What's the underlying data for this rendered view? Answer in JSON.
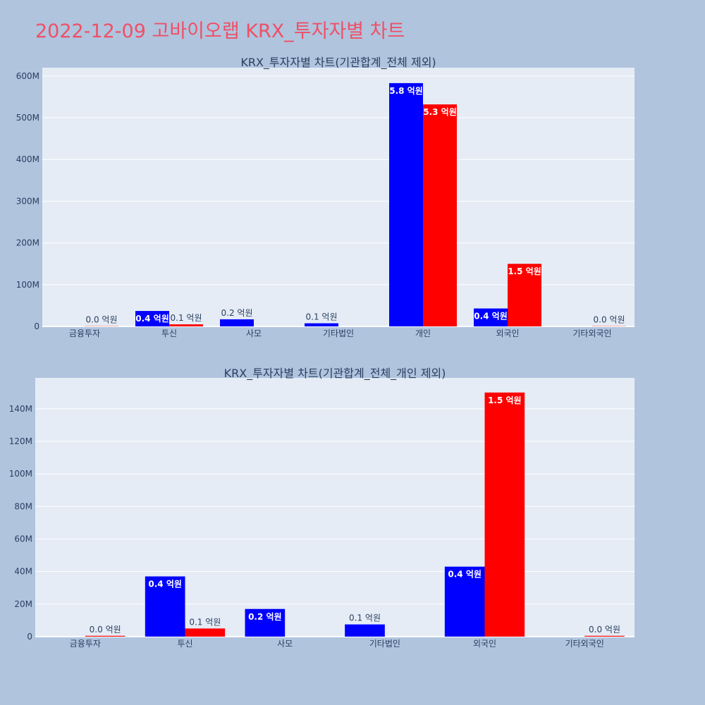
{
  "page": {
    "title": "2022-12-09 고바이오랩 KRX_투자자별 차트"
  },
  "colors": {
    "background": "#b0c4de",
    "plot_bg": "#e5ecf6",
    "title": "#ef5066",
    "buy": "#0000ff",
    "sell": "#ff0000"
  },
  "chart_data": [
    {
      "type": "bar",
      "title": "KRX_투자자별 차트(기관합계_전체 제외)",
      "categories": [
        "금융투자",
        "투신",
        "사모",
        "기타법인",
        "개인",
        "외국인",
        "기타외국인"
      ],
      "ylim": [
        0,
        620000000
      ],
      "yticks": [
        0,
        100000000,
        200000000,
        300000000,
        400000000,
        500000000,
        600000000
      ],
      "ytick_labels": [
        "0",
        "100M",
        "200M",
        "300M",
        "400M",
        "500M",
        "600M"
      ],
      "grid": true,
      "legend": "none",
      "series": [
        {
          "color": "#0000ff",
          "values": [
            0,
            37000000,
            17000000,
            7500000,
            583000000,
            43000000,
            0
          ],
          "labels": [
            "",
            "0.4 억원",
            "0.2 억원",
            "0.1 억원",
            "5.8 억원",
            "0.4 억원",
            ""
          ]
        },
        {
          "color": "#ff0000",
          "values": [
            500000,
            5000000,
            0,
            0,
            532000000,
            150000000,
            500000
          ],
          "labels": [
            "0.0 억원",
            "0.1 억원",
            "",
            "",
            "5.3 억원",
            "1.5 억원",
            "0.0 억원"
          ]
        }
      ]
    },
    {
      "type": "bar",
      "title": "KRX_투자자별 차트(기관합계_전체_개인 제외)",
      "categories": [
        "금융투자",
        "투신",
        "사모",
        "기타법인",
        "외국인",
        "기타외국인"
      ],
      "ylim": [
        0,
        159000000
      ],
      "yticks": [
        0,
        20000000,
        40000000,
        60000000,
        80000000,
        100000000,
        120000000,
        140000000
      ],
      "ytick_labels": [
        "0",
        "20M",
        "40M",
        "60M",
        "80M",
        "100M",
        "120M",
        "140M"
      ],
      "grid": true,
      "legend": "none",
      "series": [
        {
          "color": "#0000ff",
          "values": [
            0,
            37000000,
            17000000,
            7500000,
            43000000,
            0
          ],
          "labels": [
            "",
            "0.4 억원",
            "0.2 억원",
            "0.1 억원",
            "0.4 억원",
            ""
          ]
        },
        {
          "color": "#ff0000",
          "values": [
            500000,
            5000000,
            0,
            0,
            150000000,
            500000
          ],
          "labels": [
            "0.0 억원",
            "0.1 억원",
            "",
            "",
            "1.5 억원",
            "0.0 억원"
          ]
        }
      ]
    }
  ]
}
